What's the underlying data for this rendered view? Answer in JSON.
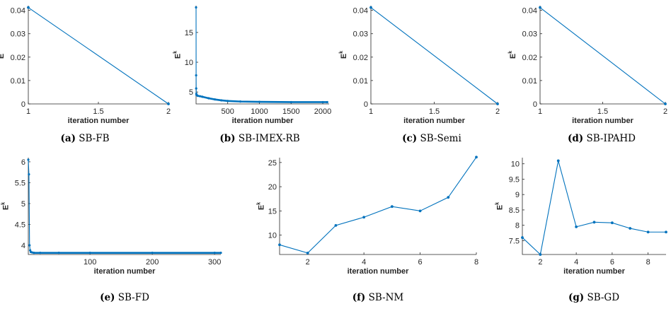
{
  "line_color": "#0072BD",
  "axis_color": "#262626",
  "chart_data": [
    {
      "type": "line",
      "caption_label": "(a)",
      "caption_text": "SB-FB",
      "xlabel": "iteration number",
      "ylabel_base": "E",
      "ylabel_sup": "k",
      "xlim": [
        1,
        2
      ],
      "ylim": [
        0,
        0.042
      ],
      "xticks": [
        1,
        1.5,
        2
      ],
      "xtick_labels": [
        "1",
        "1.5",
        "2"
      ],
      "yticks": [
        0,
        0.01,
        0.02,
        0.03,
        0.04
      ],
      "ytick_labels": [
        "0",
        "0.01",
        "0.02",
        "0.03",
        "0.04"
      ],
      "x": [
        1,
        2
      ],
      "y": [
        0.0412,
        0
      ]
    },
    {
      "type": "line",
      "caption_label": "(b)",
      "caption_text": "SB-IMEX-RB",
      "xlabel": "iteration number",
      "ylabel_base": "E",
      "ylabel_sup": "k",
      "xlim": [
        1,
        2100
      ],
      "ylim": [
        3,
        19.5
      ],
      "xticks": [
        500,
        1000,
        1500,
        2000
      ],
      "xtick_labels": [
        "500",
        "1000",
        "1500",
        "2000"
      ],
      "yticks": [
        5,
        10,
        15
      ],
      "ytick_labels": [
        "5",
        "10",
        "15"
      ],
      "x": [
        1,
        2,
        3,
        5,
        8,
        15,
        30,
        60,
        100,
        200,
        300,
        400,
        500,
        700,
        1000,
        1500,
        2000,
        2070
      ],
      "y": [
        19.2,
        7.8,
        5.6,
        4.7,
        4.5,
        4.45,
        4.35,
        4.3,
        4.2,
        3.95,
        3.75,
        3.6,
        3.5,
        3.4,
        3.35,
        3.3,
        3.3,
        3.3
      ]
    },
    {
      "type": "line",
      "caption_label": "(c)",
      "caption_text": "SB-Semi",
      "xlabel": "iteration number",
      "ylabel_base": "E",
      "ylabel_sup": "k",
      "xlim": [
        1,
        2
      ],
      "ylim": [
        0,
        0.042
      ],
      "xticks": [
        1,
        1.5,
        2
      ],
      "xtick_labels": [
        "1",
        "1.5",
        "2"
      ],
      "yticks": [
        0,
        0.01,
        0.02,
        0.03,
        0.04
      ],
      "ytick_labels": [
        "0",
        "0.01",
        "0.02",
        "0.03",
        "0.04"
      ],
      "x": [
        1,
        2
      ],
      "y": [
        0.0412,
        0
      ]
    },
    {
      "type": "line",
      "caption_label": "(d)",
      "caption_text": "SB-IPAHD",
      "xlabel": "iteration number",
      "ylabel_base": "E",
      "ylabel_sup": "k",
      "xlim": [
        1,
        2
      ],
      "ylim": [
        0,
        0.042
      ],
      "xticks": [
        1,
        1.5,
        2
      ],
      "xtick_labels": [
        "1",
        "1.5",
        "2"
      ],
      "yticks": [
        0,
        0.01,
        0.02,
        0.03,
        0.04
      ],
      "ytick_labels": [
        "0",
        "0.01",
        "0.02",
        "0.03",
        "0.04"
      ],
      "x": [
        1,
        2
      ],
      "y": [
        0.0412,
        0
      ]
    },
    {
      "type": "line",
      "caption_label": "(e)",
      "caption_text": "SB-FD",
      "xlabel": "iteration number",
      "ylabel_base": "E",
      "ylabel_sup": "k",
      "xlim": [
        1,
        310
      ],
      "ylim": [
        3.78,
        6.1
      ],
      "xticks": [
        100,
        200,
        300
      ],
      "xtick_labels": [
        "100",
        "200",
        "300"
      ],
      "yticks": [
        4,
        4.5,
        5,
        5.5,
        6
      ],
      "ytick_labels": [
        "4",
        "4.5",
        "5",
        "5.5",
        "6"
      ],
      "x": [
        1,
        2,
        3,
        4,
        5,
        7,
        10,
        20,
        50,
        100,
        200,
        300,
        310
      ],
      "y": [
        6.05,
        5.7,
        4.0,
        3.88,
        3.84,
        3.83,
        3.82,
        3.82,
        3.82,
        3.82,
        3.82,
        3.82,
        3.82
      ]
    },
    {
      "type": "line",
      "caption_label": "(f)",
      "caption_text": "SB-NM",
      "xlabel": "iteration number",
      "ylabel_base": "E",
      "ylabel_sup": "k",
      "xlim": [
        1,
        8
      ],
      "ylim": [
        6,
        26
      ],
      "xticks": [
        2,
        4,
        6,
        8
      ],
      "xtick_labels": [
        "2",
        "4",
        "6",
        "8"
      ],
      "yticks": [
        10,
        15,
        20,
        25
      ],
      "ytick_labels": [
        "10",
        "15",
        "20",
        "25"
      ],
      "x": [
        1,
        2,
        3,
        4,
        5,
        6,
        7,
        8
      ],
      "y": [
        8.0,
        6.3,
        12.0,
        13.7,
        15.9,
        15.0,
        17.8,
        26.1
      ]
    },
    {
      "type": "line",
      "caption_label": "(g)",
      "caption_text": "SB-GD",
      "xlabel": "iteration number",
      "ylabel_base": "E",
      "ylabel_sup": "k",
      "xlim": [
        1,
        9
      ],
      "ylim": [
        7.05,
        10.2
      ],
      "xticks": [
        2,
        4,
        6,
        8
      ],
      "xtick_labels": [
        "2",
        "4",
        "6",
        "8"
      ],
      "yticks": [
        7.5,
        8,
        8.5,
        9,
        9.5,
        10
      ],
      "ytick_labels": [
        "7.5",
        "8",
        "8.5",
        "9",
        "9.5",
        "10"
      ],
      "x": [
        1,
        2,
        3,
        4,
        5,
        6,
        7,
        8,
        9
      ],
      "y": [
        7.6,
        7.05,
        10.1,
        7.95,
        8.1,
        8.08,
        7.9,
        7.78,
        7.78
      ]
    }
  ]
}
